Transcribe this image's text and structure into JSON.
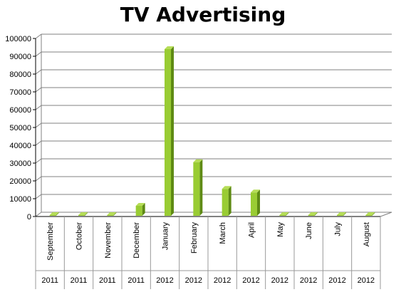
{
  "chart_data": {
    "type": "bar",
    "title": "TV Advertising",
    "categories": [
      "September",
      "October",
      "November",
      "December",
      "January",
      "February",
      "March",
      "April",
      "May",
      "June",
      "July",
      "August"
    ],
    "years": [
      "2011",
      "2011",
      "2011",
      "2011",
      "2012",
      "2012",
      "2012",
      "2012",
      "2012",
      "2012",
      "2012",
      "2012"
    ],
    "values": [
      0,
      0,
      0,
      6000,
      94000,
      30500,
      15500,
      13500,
      0,
      0,
      0,
      0
    ],
    "ylim": [
      0,
      100000
    ],
    "yticks": [
      0,
      10000,
      20000,
      30000,
      40000,
      50000,
      60000,
      70000,
      80000,
      90000,
      100000
    ],
    "grid": true,
    "colors": {
      "bar_front": "#99cc33",
      "bar_side": "#5e8a14",
      "bar_top": "#b6dd58",
      "grid": "#808080"
    }
  }
}
